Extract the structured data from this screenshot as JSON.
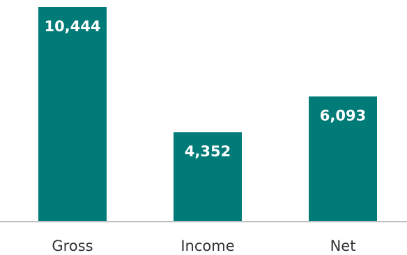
{
  "chart_data": {
    "type": "bar",
    "categories": [
      "Gross",
      "Income",
      "Net"
    ],
    "values": [
      10444,
      4352,
      6093
    ],
    "data_labels": [
      "10,444",
      "4,352",
      "6,093"
    ],
    "title": "",
    "xlabel": "",
    "ylabel": "",
    "ylim": [
      0,
      10444
    ],
    "grid": false,
    "legend": "none",
    "bar_color": "#007b78",
    "axis_color": "#bfbfbf"
  }
}
